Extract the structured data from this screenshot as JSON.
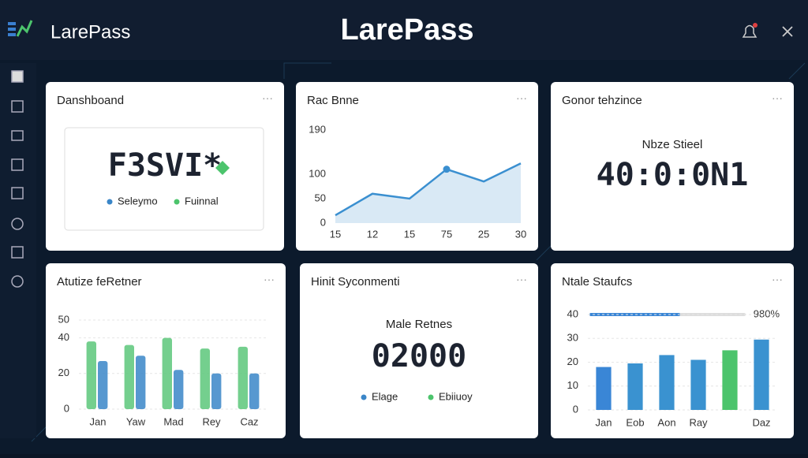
{
  "header": {
    "brand": "LarePass",
    "title": "LarePass"
  },
  "cards": [
    {
      "title": "Danshboand",
      "value": "F3SVI*",
      "legend": [
        "Seleymo",
        "Fuinnal"
      ]
    },
    {
      "title": "Rac Bnne",
      "chart_data": {
        "type": "line",
        "categories": [
          "15",
          "12",
          "15",
          "75",
          "25",
          "30"
        ],
        "values": [
          16,
          60,
          50,
          110,
          85,
          122
        ],
        "color": "#3a8fd0",
        "ylim": [
          0,
          190
        ],
        "yticks": [
          0,
          50,
          100,
          190
        ]
      }
    },
    {
      "title": "Gonor tehzince",
      "subtitle": "Nbze Stieel",
      "value": "40:0:0N1"
    },
    {
      "title": "Atutize feRetner",
      "chart_data": {
        "type": "bar",
        "categories": [
          "Jan",
          "Yaw",
          "Mad",
          "Rey",
          "Caz"
        ],
        "series": [
          {
            "name": null,
            "color": "#5cc77a",
            "values": [
              38,
              36,
              40,
              34,
              35
            ]
          },
          {
            "name": null,
            "color": "#3a86c8",
            "values": [
              27,
              30,
              22,
              20,
              20
            ]
          }
        ],
        "ylim": [
          0,
          50
        ],
        "yticks": [
          0,
          20,
          40,
          50
        ],
        "grid": true
      }
    },
    {
      "title": "Hinit Syconmenti",
      "subtitle": "Male Retnes",
      "value": "02000",
      "legend": [
        "Elage",
        "Ebiiuoy"
      ]
    },
    {
      "title": "Ntale Staufcs",
      "progress_label": "980%",
      "chart_data": {
        "type": "bar",
        "categories": [
          "Jan",
          "Eob",
          "Aon",
          "Ray",
          null,
          "Daz"
        ],
        "values": [
          18,
          19.5,
          23,
          21,
          25,
          29.5
        ],
        "colors": [
          "#3a86d6",
          "#3a92d0",
          "#3a92d0",
          "#3a92d0",
          "#4cc46c",
          "#3a92d0"
        ],
        "ylim": [
          0,
          40
        ],
        "yticks": [
          0,
          10,
          20,
          30,
          40
        ],
        "grid": true
      }
    }
  ]
}
